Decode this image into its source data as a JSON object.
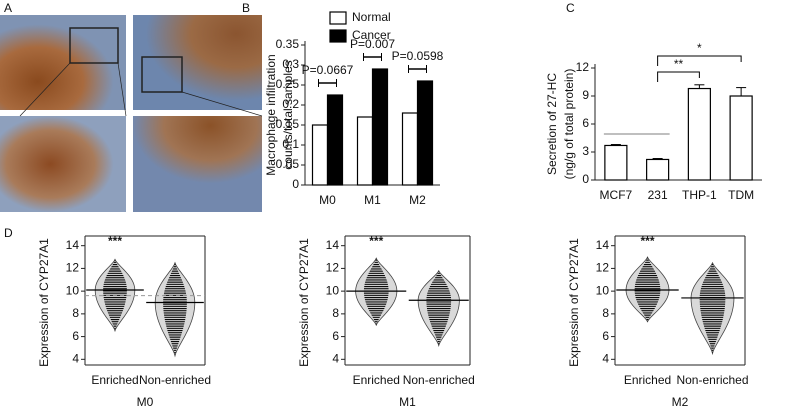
{
  "panel_a": {
    "panel": "A"
  },
  "chart_data": [
    {
      "type": "bar",
      "panel": "B",
      "y_label": [
        "Macrophage infiltration",
        "counts/total samples"
      ],
      "categories": [
        "M0",
        "M1",
        "M2"
      ],
      "series": [
        {
          "name": "Normal",
          "color": "#ffffff",
          "values": [
            0.15,
            0.17,
            0.18
          ]
        },
        {
          "name": "Cancer",
          "color": "#000000",
          "values": [
            0.225,
            0.29,
            0.26
          ]
        }
      ],
      "annotations": [
        "P=0.0667",
        "P=0.007",
        "P=0.0598"
      ],
      "ylim": [
        0,
        0.35
      ],
      "yticks": [
        0,
        0.05,
        0.1,
        0.15,
        0.2,
        0.25,
        0.3,
        0.35
      ]
    },
    {
      "type": "bar",
      "panel": "C",
      "y_label": [
        "Secretion of 27-HC",
        "(ng/g of total protein)"
      ],
      "categories": [
        "MCF7",
        "231",
        "THP-1",
        "TDM"
      ],
      "series": [
        {
          "color": "#ffffff",
          "values": [
            3.7,
            2.2,
            9.8,
            9.0
          ],
          "errors": [
            0.1,
            0.1,
            0.4,
            0.9
          ]
        }
      ],
      "annotations": [
        "**",
        "*"
      ],
      "ylim": [
        0,
        12
      ],
      "yticks": [
        0,
        3,
        6,
        9,
        12
      ]
    },
    {
      "type": "beanplot",
      "panel": "D",
      "title": "M0",
      "y_label": "Expression of CYP27A1",
      "categories": [
        "Enriched",
        "Non-enriched"
      ],
      "values": [
        10.1,
        9.0
      ],
      "ranges": [
        [
          6.5,
          12.8
        ],
        [
          4.3,
          12.5
        ]
      ],
      "overall": 9.6,
      "annotation": "***",
      "ylim": [
        3.5,
        14.5
      ],
      "yticks": [
        4,
        6,
        8,
        10,
        12,
        14
      ]
    },
    {
      "type": "beanplot",
      "title": "M1",
      "y_label": "Expression of CYP27A1",
      "categories": [
        "Enriched",
        "Non-enriched"
      ],
      "values": [
        10.0,
        9.2
      ],
      "ranges": [
        [
          7.0,
          12.9
        ],
        [
          5.2,
          11.8
        ]
      ],
      "annotation": "***",
      "ylim": [
        3.5,
        14.5
      ],
      "yticks": [
        4,
        6,
        8,
        10,
        12,
        14
      ]
    },
    {
      "type": "beanplot",
      "title": "M2",
      "y_label": "Expression of CYP27A1",
      "categories": [
        "Enriched",
        "Non-enriched"
      ],
      "values": [
        10.1,
        9.4
      ],
      "ranges": [
        [
          7.3,
          13.0
        ],
        [
          4.5,
          12.5
        ]
      ],
      "annotation": "***",
      "ylim": [
        3.5,
        14.5
      ],
      "yticks": [
        4,
        6,
        8,
        10,
        12,
        14
      ]
    }
  ]
}
